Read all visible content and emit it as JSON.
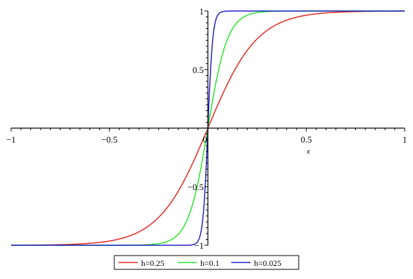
{
  "chart_data": {
    "type": "line",
    "xlabel": "x",
    "ylabel": "",
    "xlim": [
      -1,
      1
    ],
    "ylim": [
      -1,
      1
    ],
    "grid": false,
    "legend_position": "bottom-center",
    "x_ticks": [
      {
        "value": -1,
        "label": "−1"
      },
      {
        "value": -0.5,
        "label": "−0.5"
      },
      {
        "value": 0,
        "label": "0"
      },
      {
        "value": 0.5,
        "label": "0.5"
      },
      {
        "value": 1,
        "label": "1"
      }
    ],
    "y_ticks": [
      {
        "value": 1,
        "label": "1"
      },
      {
        "value": 0.5,
        "label": "0.5"
      },
      {
        "value": -0.5,
        "label": "−0.5"
      },
      {
        "value": -1,
        "label": "−1"
      }
    ],
    "series": [
      {
        "name": "h=0.25",
        "color": "#e8251f",
        "h": 0.25,
        "x": [
          -1,
          -0.8,
          -0.6,
          -0.5,
          -0.4,
          -0.3,
          -0.25,
          -0.2,
          -0.15,
          -0.1,
          -0.05,
          0,
          0.05,
          0.1,
          0.15,
          0.2,
          0.25,
          0.3,
          0.4,
          0.5,
          0.6,
          0.8,
          1
        ],
        "y": [
          -1.0,
          -0.9999,
          -0.9982,
          -0.9926,
          -0.9705,
          -0.8854,
          -0.7806,
          -0.6178,
          -0.4053,
          -0.1963,
          -0.0456,
          0.0,
          0.0456,
          0.1963,
          0.4053,
          0.6178,
          0.7806,
          0.8854,
          0.9705,
          0.9926,
          0.9982,
          0.9999,
          1.0
        ]
      },
      {
        "name": "h=0.1",
        "color": "#26e626",
        "h": 0.1,
        "x": [
          -1,
          -0.5,
          -0.3,
          -0.2,
          -0.15,
          -0.1,
          -0.08,
          -0.06,
          -0.04,
          -0.02,
          0,
          0.02,
          0.04,
          0.06,
          0.08,
          0.1,
          0.15,
          0.2,
          0.3,
          0.5,
          1
        ],
        "y": [
          -1.0,
          -1.0,
          -1.0,
          -0.9993,
          -0.9883,
          -0.9293,
          -0.8578,
          -0.6957,
          -0.4309,
          -0.0988,
          0.0,
          0.0988,
          0.4309,
          0.6957,
          0.8578,
          0.9293,
          0.9883,
          0.9993,
          1.0,
          1.0,
          1.0
        ]
      },
      {
        "name": "h=0.025",
        "color": "#1f1fc8",
        "h": 0.025,
        "x": [
          -1,
          -0.1,
          -0.05,
          -0.04,
          -0.03,
          -0.02,
          -0.015,
          -0.01,
          -0.005,
          0,
          0.005,
          0.01,
          0.015,
          0.02,
          0.03,
          0.04,
          0.05,
          0.1,
          1
        ],
        "y": [
          -1.0,
          -1.0,
          -0.9999,
          -0.9982,
          -0.9705,
          -0.8854,
          -0.7066,
          -0.4053,
          -0.1135,
          0.0,
          0.1135,
          0.4053,
          0.7066,
          0.8854,
          0.9705,
          0.9982,
          0.9999,
          1.0,
          1.0
        ]
      }
    ]
  }
}
